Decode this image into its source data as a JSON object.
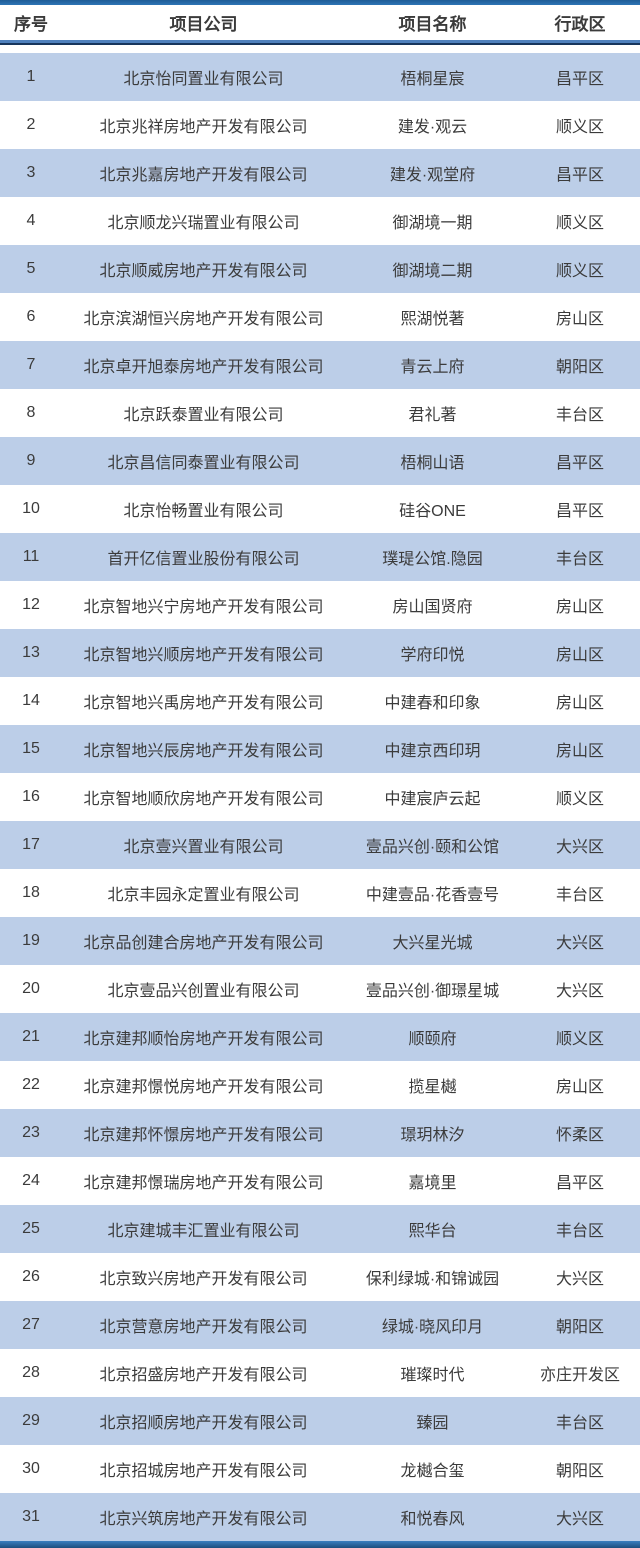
{
  "table": {
    "columns": [
      "序号",
      "项目公司",
      "项目名称",
      "行政区"
    ],
    "rows": [
      {
        "no": "1",
        "company": "北京怡同置业有限公司",
        "project": "梧桐星宸",
        "district": "昌平区"
      },
      {
        "no": "2",
        "company": "北京兆祥房地产开发有限公司",
        "project": "建发·观云",
        "district": "顺义区"
      },
      {
        "no": "3",
        "company": "北京兆嘉房地产开发有限公司",
        "project": "建发·观堂府",
        "district": "昌平区"
      },
      {
        "no": "4",
        "company": "北京顺龙兴瑞置业有限公司",
        "project": "御湖境一期",
        "district": "顺义区"
      },
      {
        "no": "5",
        "company": "北京顺威房地产开发有限公司",
        "project": "御湖境二期",
        "district": "顺义区"
      },
      {
        "no": "6",
        "company": "北京滨湖恒兴房地产开发有限公司",
        "project": "熙湖悦著",
        "district": "房山区"
      },
      {
        "no": "7",
        "company": "北京卓开旭泰房地产开发有限公司",
        "project": "青云上府",
        "district": "朝阳区"
      },
      {
        "no": "8",
        "company": "北京跃泰置业有限公司",
        "project": "君礼著",
        "district": "丰台区"
      },
      {
        "no": "9",
        "company": "北京昌信同泰置业有限公司",
        "project": "梧桐山语",
        "district": "昌平区"
      },
      {
        "no": "10",
        "company": "北京怡畅置业有限公司",
        "project": "硅谷ONE",
        "district": "昌平区"
      },
      {
        "no": "11",
        "company": "首开亿信置业股份有限公司",
        "project": "璞瑅公馆.隐园",
        "district": "丰台区"
      },
      {
        "no": "12",
        "company": "北京智地兴宁房地产开发有限公司",
        "project": "房山国贤府",
        "district": "房山区"
      },
      {
        "no": "13",
        "company": "北京智地兴顺房地产开发有限公司",
        "project": "学府印悦",
        "district": "房山区"
      },
      {
        "no": "14",
        "company": "北京智地兴禹房地产开发有限公司",
        "project": "中建春和印象",
        "district": "房山区"
      },
      {
        "no": "15",
        "company": "北京智地兴辰房地产开发有限公司",
        "project": "中建京西印玥",
        "district": "房山区"
      },
      {
        "no": "16",
        "company": "北京智地顺欣房地产开发有限公司",
        "project": "中建宸庐云起",
        "district": "顺义区"
      },
      {
        "no": "17",
        "company": "北京壹兴置业有限公司",
        "project": "壹品兴创·颐和公馆",
        "district": "大兴区"
      },
      {
        "no": "18",
        "company": "北京丰园永定置业有限公司",
        "project": "中建壹品·花香壹号",
        "district": "丰台区"
      },
      {
        "no": "19",
        "company": "北京品创建合房地产开发有限公司",
        "project": "大兴星光城",
        "district": "大兴区"
      },
      {
        "no": "20",
        "company": "北京壹品兴创置业有限公司",
        "project": "壹品兴创·御璟星城",
        "district": "大兴区"
      },
      {
        "no": "21",
        "company": "北京建邦顺怡房地产开发有限公司",
        "project": "顺颐府",
        "district": "顺义区"
      },
      {
        "no": "22",
        "company": "北京建邦憬悦房地产开发有限公司",
        "project": "揽星樾",
        "district": "房山区"
      },
      {
        "no": "23",
        "company": "北京建邦怀憬房地产开发有限公司",
        "project": "璟玥林汐",
        "district": "怀柔区"
      },
      {
        "no": "24",
        "company": "北京建邦憬瑞房地产开发有限公司",
        "project": "嘉境里",
        "district": "昌平区"
      },
      {
        "no": "25",
        "company": "北京建城丰汇置业有限公司",
        "project": "熙华台",
        "district": "丰台区"
      },
      {
        "no": "26",
        "company": "北京致兴房地产开发有限公司",
        "project": "保利绿城·和锦诚园",
        "district": "大兴区"
      },
      {
        "no": "27",
        "company": "北京营意房地产开发有限公司",
        "project": "绿城·晓风印月",
        "district": "朝阳区"
      },
      {
        "no": "28",
        "company": "北京招盛房地产开发有限公司",
        "project": "璀璨时代",
        "district": "亦庄开发区"
      },
      {
        "no": "29",
        "company": "北京招顺房地产开发有限公司",
        "project": "臻园",
        "district": "丰台区"
      },
      {
        "no": "30",
        "company": "北京招城房地产开发有限公司",
        "project": "龙樾合玺",
        "district": "朝阳区"
      },
      {
        "no": "31",
        "company": "北京兴筑房地产开发有限公司",
        "project": "和悦春风",
        "district": "大兴区"
      }
    ]
  },
  "colors": {
    "stripe": "#bccee8",
    "outer_border": "#2e74b5",
    "header_border_mid": "#4f81bd",
    "header_border_dark": "#17365d",
    "text": "#3b3b3b"
  }
}
